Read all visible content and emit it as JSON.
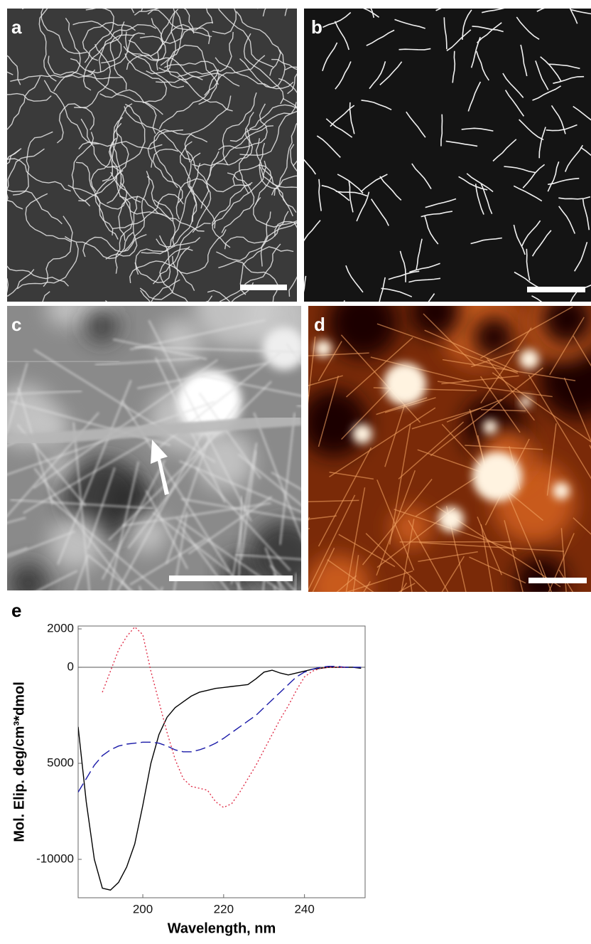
{
  "panels": [
    "a",
    "b",
    "c",
    "d"
  ],
  "chart_data": {
    "type": "line",
    "panel_label": "e",
    "xlabel": "Wavelength, nm",
    "ylabel": "Mol. Elip. deg/cm³*dmol",
    "xlim": [
      184,
      255
    ],
    "xticks": [
      200,
      220,
      240
    ],
    "ylim": [
      -12000,
      2150
    ],
    "yticks": [
      2000,
      0,
      {
        "value": -5000,
        "label": "5000"
      },
      -10000
    ],
    "zero_line": true,
    "x": [
      184,
      186,
      188,
      190,
      192,
      194,
      196,
      198,
      200,
      202,
      204,
      206,
      208,
      210,
      212,
      214,
      216,
      218,
      220,
      222,
      224,
      226,
      228,
      230,
      232,
      234,
      236,
      238,
      240,
      242,
      244,
      246,
      248,
      250,
      252,
      254
    ],
    "series": [
      {
        "color": "#000000",
        "dash": "solid",
        "values": [
          -3100,
          -7000,
          -10000,
          -11500,
          -11600,
          -11200,
          -10400,
          -9200,
          -7200,
          -5000,
          -3500,
          -2600,
          -2100,
          -1800,
          -1500,
          -1300,
          -1200,
          -1100,
          -1050,
          -1000,
          -950,
          -900,
          -600,
          -250,
          -150,
          -300,
          -400,
          -300,
          -200,
          -100,
          -50,
          0,
          0,
          0,
          0,
          -50
        ]
      },
      {
        "color": "#1a1aa8",
        "dash": "dashed",
        "values": [
          -6500,
          -5800,
          -5100,
          -4600,
          -4300,
          -4100,
          -4000,
          -3950,
          -3900,
          -3900,
          -3950,
          -4100,
          -4300,
          -4400,
          -4400,
          -4300,
          -4150,
          -3950,
          -3700,
          -3400,
          -3100,
          -2800,
          -2500,
          -2100,
          -1700,
          -1300,
          -900,
          -500,
          -250,
          -100,
          0,
          50,
          50,
          0,
          0,
          0
        ]
      },
      {
        "color": "#e0304a",
        "dash": "dotted",
        "values": [
          null,
          null,
          null,
          -1300,
          -200,
          900,
          1600,
          2100,
          1700,
          -200,
          -1800,
          -3400,
          -4800,
          -5800,
          -6200,
          -6300,
          -6400,
          -7000,
          -7300,
          -7100,
          -6500,
          -5800,
          -5100,
          -4300,
          -3500,
          -2700,
          -2000,
          -1200,
          -500,
          -200,
          -50,
          0,
          0,
          0,
          null,
          null
        ]
      }
    ]
  }
}
